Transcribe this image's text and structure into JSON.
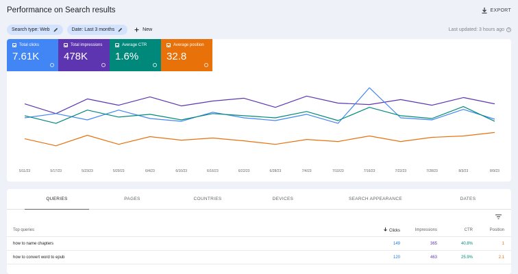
{
  "header": {
    "title": "Performance on Search results",
    "export_label": "EXPORT"
  },
  "filters": {
    "chips": [
      {
        "label": "Search type: Web"
      },
      {
        "label": "Date: Last 3 months"
      }
    ],
    "new_label": "New",
    "last_updated": "Last updated: 3 hours ago"
  },
  "metrics": [
    {
      "label": "Total clicks",
      "value": "7.61K",
      "color": "#4285f4"
    },
    {
      "label": "Total impressions",
      "value": "478K",
      "color": "#5e35b1"
    },
    {
      "label": "Average CTR",
      "value": "1.6%",
      "color": "#00897b"
    },
    {
      "label": "Average position",
      "value": "32.8",
      "color": "#e8710a"
    }
  ],
  "chart_data": {
    "type": "line",
    "x": [
      "5/11/23",
      "5/17/23",
      "5/23/23",
      "5/29/23",
      "6/4/23",
      "6/10/23",
      "6/16/23",
      "6/22/23",
      "6/28/23",
      "7/4/23",
      "7/10/23",
      "7/16/23",
      "7/22/23",
      "7/28/23",
      "8/3/23",
      "8/9/23"
    ],
    "grid": false,
    "series": [
      {
        "color": "#5e35b1",
        "values": [
          72,
          58,
          79,
          70,
          82,
          69,
          76,
          80,
          67,
          83,
          73,
          71,
          78,
          70,
          81,
          72
        ]
      },
      {
        "color": "#4285f4",
        "values": [
          52,
          58,
          49,
          63,
          51,
          47,
          60,
          52,
          48,
          57,
          44,
          95,
          52,
          49,
          64,
          50
        ]
      },
      {
        "color": "#00897b",
        "values": [
          55,
          44,
          63,
          53,
          57,
          49,
          58,
          55,
          52,
          61,
          48,
          67,
          55,
          51,
          68,
          47
        ]
      },
      {
        "color": "#e8710a",
        "values": [
          22,
          12,
          27,
          14,
          25,
          20,
          23,
          19,
          14,
          21,
          18,
          26,
          18,
          24,
          26,
          31
        ]
      }
    ]
  },
  "table": {
    "tabs": [
      "QUERIES",
      "PAGES",
      "COUNTRIES",
      "DEVICES",
      "SEARCH APPEARANCE",
      "DATES"
    ],
    "columns": [
      "Top queries",
      "Clicks",
      "Impressions",
      "CTR",
      "Position"
    ],
    "rows": [
      {
        "query": "how to name chapters",
        "clicks": "149",
        "impressions": "365",
        "ctr": "40.8%",
        "position": "1"
      },
      {
        "query": "how to convert word to epub",
        "clicks": "120",
        "impressions": "463",
        "ctr": "25.9%",
        "position": "2.1"
      }
    ],
    "col_colors": {
      "clicks": "#1a73e8",
      "impressions": "#5e35b1",
      "ctr": "#00897b",
      "position": "#e8710a"
    }
  }
}
